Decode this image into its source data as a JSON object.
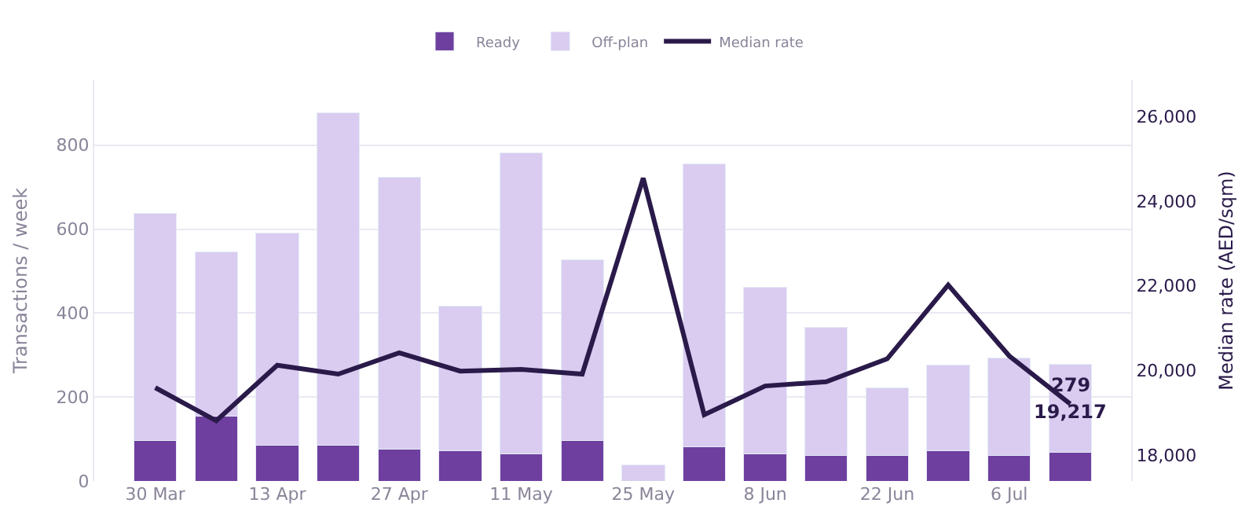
{
  "chart_data": {
    "type": "bar",
    "stacked": true,
    "categories": [
      "30 Mar",
      null,
      "13 Apr",
      null,
      "27 Apr",
      null,
      "11 May",
      null,
      "25 May",
      null,
      "8 Jun",
      null,
      "22 Jun",
      null,
      "6 Jul",
      null
    ],
    "series": [
      {
        "name": "Ready",
        "color": "#6f3fa0",
        "values": [
          97,
          154,
          86,
          86,
          75,
          72,
          65,
          97,
          0,
          82,
          65,
          61,
          61,
          72,
          61,
          68
        ]
      },
      {
        "name": "Off-plan",
        "color": "#d9ccf0",
        "values": [
          541,
          391,
          505,
          792,
          649,
          344,
          716,
          430,
          39,
          674,
          397,
          305,
          161,
          204,
          233,
          211
        ]
      },
      {
        "name": "Median rate",
        "type": "line",
        "axis": "y2",
        "color": "#2a1a4a",
        "values": [
          19600,
          18820,
          20130,
          19920,
          20420,
          19990,
          20030,
          19920,
          24540,
          18960,
          19640,
          19740,
          20280,
          22020,
          20350,
          19217
        ],
        "value_labels": [
          null,
          null,
          null,
          null,
          null,
          null,
          null,
          null,
          null,
          null,
          null,
          null,
          null,
          null,
          null,
          "19,217"
        ]
      }
    ],
    "totals": [
      null,
      null,
      null,
      null,
      null,
      null,
      null,
      null,
      null,
      null,
      null,
      null,
      null,
      null,
      null,
      "279"
    ],
    "ylabel": "Transactions / week",
    "y2label": "Median rate (AED/sqm)",
    "ylim": [
      0,
      955
    ],
    "yticks": [
      0,
      200,
      400,
      600,
      800
    ],
    "y2lim": [
      17400,
      26850
    ],
    "y2ticks": [
      {
        "value": 18000,
        "label": "18,000"
      },
      {
        "value": 20000,
        "label": "20,000"
      },
      {
        "value": 22000,
        "label": "22,000"
      },
      {
        "value": 24000,
        "label": "24,000"
      },
      {
        "value": 26000,
        "label": "26,000"
      }
    ],
    "grid": "y",
    "legend": "top",
    "marker": "none"
  }
}
